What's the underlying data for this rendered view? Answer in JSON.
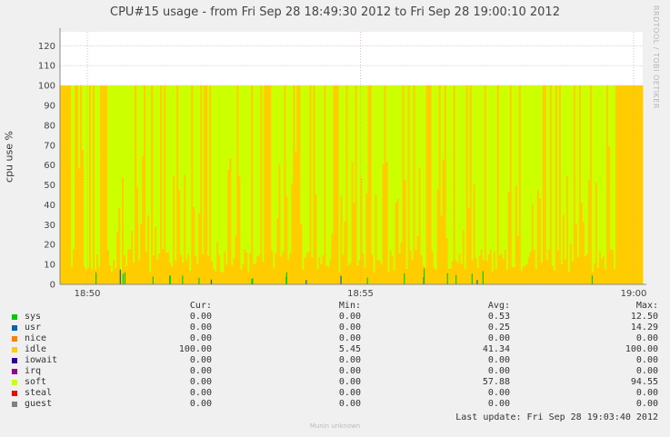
{
  "chart_data": {
    "type": "area",
    "title": "CPU#15 usage - from Fri Sep 28 18:49:30 2012 to Fri Sep 28 19:00:10 2012",
    "ylabel": "cpu use %",
    "xlabel": "",
    "ylim": [
      0,
      127
    ],
    "yticks": [
      0,
      10,
      20,
      30,
      40,
      50,
      60,
      70,
      80,
      90,
      100,
      110,
      120
    ],
    "xlim": [
      "18:49:30",
      "19:00:10"
    ],
    "xticks": [
      {
        "time": "18:50",
        "label": "18:50"
      },
      {
        "time": "18:55",
        "label": "18:55"
      },
      {
        "time": "19:00",
        "label": "19:00"
      }
    ],
    "grid": true,
    "stacked": true,
    "series": [
      {
        "name": "sys",
        "color": "#00cc00",
        "cur": "0.00",
        "min": "0.00",
        "avg": "0.53",
        "max": "12.50"
      },
      {
        "name": "usr",
        "color": "#0066b3",
        "cur": "0.00",
        "min": "0.00",
        "avg": "0.25",
        "max": "14.29"
      },
      {
        "name": "nice",
        "color": "#ff8000",
        "cur": "0.00",
        "min": "0.00",
        "avg": "0.00",
        "max": "0.00"
      },
      {
        "name": "idle",
        "color": "#ffcc00",
        "cur": "100.00",
        "min": "5.45",
        "avg": "41.34",
        "max": "100.00"
      },
      {
        "name": "iowait",
        "color": "#330099",
        "cur": "0.00",
        "min": "0.00",
        "avg": "0.00",
        "max": "0.00"
      },
      {
        "name": "irq",
        "color": "#990099",
        "cur": "0.00",
        "min": "0.00",
        "avg": "0.00",
        "max": "0.00"
      },
      {
        "name": "soft",
        "color": "#ccff00",
        "cur": "0.00",
        "min": "0.00",
        "avg": "57.88",
        "max": "94.55"
      },
      {
        "name": "steal",
        "color": "#ff0000",
        "cur": "0.00",
        "min": "0.00",
        "avg": "0.00",
        "max": "0.00"
      },
      {
        "name": "guest",
        "color": "#808080",
        "cur": "0.00",
        "min": "0.00",
        "avg": "0.00",
        "max": "0.00"
      }
    ],
    "columns": {
      "cur": "Cur:",
      "min": "Min:",
      "avg": "Avg:",
      "max": "Max:"
    }
  },
  "watermark": "RRDTOOL / TOBI OETIKER",
  "last_update": "Last update:  Fri Sep 28 19:03:40 2012",
  "footer": "Munin unknown"
}
